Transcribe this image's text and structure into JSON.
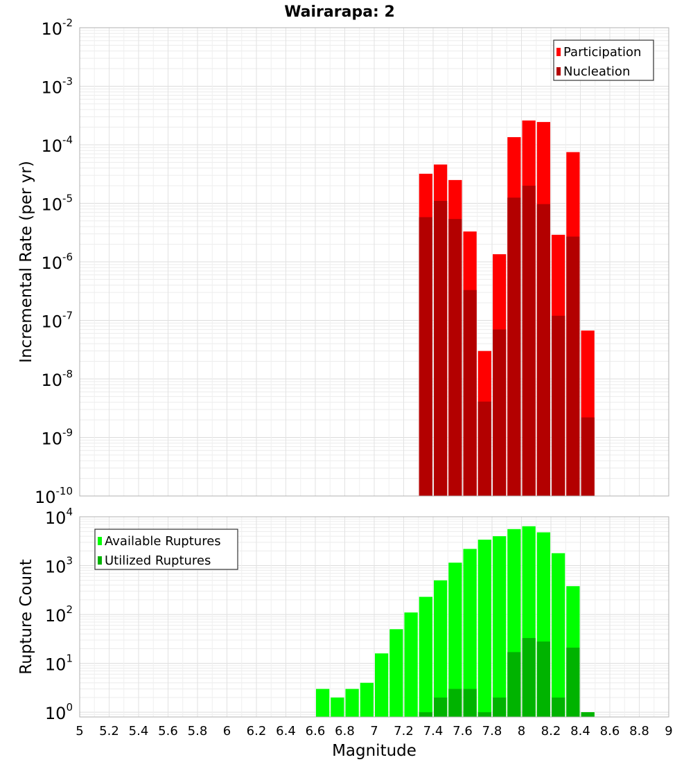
{
  "chart_data": [
    {
      "type": "bar",
      "title": "Wairarapa: 2",
      "xlabel": "",
      "ylabel": "Incremental Rate (per yr)",
      "yscale": "log",
      "ylim": [
        1e-10,
        0.01
      ],
      "xlim": [
        5,
        9
      ],
      "grid": true,
      "legend_position": "top-right",
      "bin_width": 0.1,
      "series": [
        {
          "name": "Participation",
          "color": "#ff0000",
          "points": [
            {
              "x": 7.35,
              "y": 3.2e-05
            },
            {
              "x": 7.45,
              "y": 4.6e-05
            },
            {
              "x": 7.55,
              "y": 2.5e-05
            },
            {
              "x": 7.65,
              "y": 3.3e-06
            },
            {
              "x": 7.75,
              "y": 3e-08
            },
            {
              "x": 7.85,
              "y": 1.35e-06
            },
            {
              "x": 7.95,
              "y": 0.000135
            },
            {
              "x": 8.05,
              "y": 0.00026
            },
            {
              "x": 8.15,
              "y": 0.000245
            },
            {
              "x": 8.25,
              "y": 2.9e-06
            },
            {
              "x": 8.35,
              "y": 7.5e-05
            },
            {
              "x": 8.45,
              "y": 6.7e-08
            }
          ]
        },
        {
          "name": "Nucleation",
          "color": "#b30000",
          "points": [
            {
              "x": 7.35,
              "y": 5.8e-06
            },
            {
              "x": 7.45,
              "y": 1.1e-05
            },
            {
              "x": 7.55,
              "y": 5.4e-06
            },
            {
              "x": 7.65,
              "y": 3.3e-07
            },
            {
              "x": 7.75,
              "y": 4.1e-09
            },
            {
              "x": 7.85,
              "y": 7e-08
            },
            {
              "x": 7.95,
              "y": 1.25e-05
            },
            {
              "x": 8.05,
              "y": 2e-05
            },
            {
              "x": 8.15,
              "y": 9.7e-06
            },
            {
              "x": 8.25,
              "y": 1.2e-07
            },
            {
              "x": 8.35,
              "y": 2.7e-06
            },
            {
              "x": 8.45,
              "y": 2.2e-09
            }
          ]
        }
      ]
    },
    {
      "type": "bar",
      "title": "",
      "xlabel": "Magnitude",
      "ylabel": "Rupture Count",
      "yscale": "log",
      "ylim": [
        0.8,
        10000
      ],
      "xlim": [
        5,
        9
      ],
      "xticks": [
        "5",
        "5.2",
        "5.4",
        "5.6",
        "5.8",
        "6",
        "6.2",
        "6.4",
        "6.6",
        "6.8",
        "7",
        "7.2",
        "7.4",
        "7.6",
        "7.8",
        "8",
        "8.2",
        "8.4",
        "8.6",
        "8.8",
        "9"
      ],
      "grid": true,
      "legend_position": "top-left",
      "bin_width": 0.1,
      "series": [
        {
          "name": "Available Ruptures",
          "color": "#00ff00",
          "points": [
            {
              "x": 6.65,
              "y": 3
            },
            {
              "x": 6.75,
              "y": 2
            },
            {
              "x": 6.85,
              "y": 3
            },
            {
              "x": 6.95,
              "y": 4
            },
            {
              "x": 7.05,
              "y": 16
            },
            {
              "x": 7.15,
              "y": 50
            },
            {
              "x": 7.25,
              "y": 110
            },
            {
              "x": 7.35,
              "y": 230
            },
            {
              "x": 7.45,
              "y": 500
            },
            {
              "x": 7.55,
              "y": 1150
            },
            {
              "x": 7.65,
              "y": 2200
            },
            {
              "x": 7.75,
              "y": 3400
            },
            {
              "x": 7.85,
              "y": 4000
            },
            {
              "x": 7.95,
              "y": 5600
            },
            {
              "x": 8.05,
              "y": 6400
            },
            {
              "x": 8.15,
              "y": 4800
            },
            {
              "x": 8.25,
              "y": 1800
            },
            {
              "x": 8.35,
              "y": 380
            },
            {
              "x": 8.45,
              "y": 1
            }
          ]
        },
        {
          "name": "Utilized Ruptures",
          "color": "#00b300",
          "points": [
            {
              "x": 7.35,
              "y": 1
            },
            {
              "x": 7.45,
              "y": 2
            },
            {
              "x": 7.55,
              "y": 3
            },
            {
              "x": 7.65,
              "y": 3
            },
            {
              "x": 7.75,
              "y": 1
            },
            {
              "x": 7.85,
              "y": 2
            },
            {
              "x": 7.95,
              "y": 17
            },
            {
              "x": 8.05,
              "y": 33
            },
            {
              "x": 8.15,
              "y": 28
            },
            {
              "x": 8.25,
              "y": 2
            },
            {
              "x": 8.35,
              "y": 21
            },
            {
              "x": 8.45,
              "y": 1
            }
          ]
        }
      ]
    }
  ]
}
